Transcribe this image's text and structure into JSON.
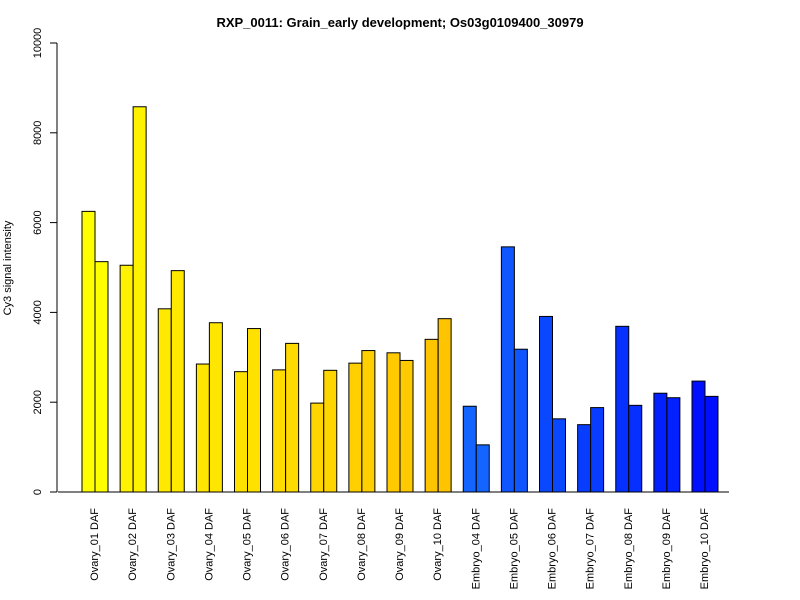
{
  "chart_data": {
    "type": "bar",
    "title": "RXP_0011: Grain_early development; Os03g0109400_30979",
    "xlabel": "",
    "ylabel": "Cy3 signal intensity",
    "ylim": [
      0,
      10000
    ],
    "yticks": [
      "0",
      "2000",
      "4000",
      "6000",
      "8000",
      "10000"
    ],
    "grid": false,
    "legend": "none",
    "categories": [
      "Ovary_01 DAF",
      "Ovary_02 DAF",
      "Ovary_03 DAF",
      "Ovary_04 DAF",
      "Ovary_05 DAF",
      "Ovary_06 DAF",
      "Ovary_07 DAF",
      "Ovary_08 DAF",
      "Ovary_09 DAF",
      "Ovary_10 DAF",
      "Embryo_04 DAF",
      "Embryo_05 DAF",
      "Embryo_06 DAF",
      "Embryo_07 DAF",
      "Embryo_08 DAF",
      "Embryo_09 DAF",
      "Embryo_10 DAF"
    ],
    "colors": [
      "#ffff00",
      "#fff200",
      "#ffe900",
      "#ffe600",
      "#ffe100",
      "#ffdb00",
      "#ffd500",
      "#ffcf00",
      "#ffca00",
      "#ffc400",
      "#1464ff",
      "#0f56ff",
      "#0a48ff",
      "#083dff",
      "#0530ff",
      "#0320ff",
      "#0010ff"
    ],
    "series": [
      {
        "values": [
          6250,
          5050,
          4080,
          2850,
          2680,
          2720,
          1980,
          2870,
          3100,
          3400,
          1910,
          5460,
          3910,
          1500,
          3690,
          2200,
          2470
        ]
      },
      {
        "values": [
          5130,
          8580,
          4930,
          3770,
          3640,
          3310,
          2710,
          3150,
          2930,
          3860,
          1050,
          3180,
          1630,
          1880,
          1930,
          2100,
          2130
        ]
      }
    ]
  }
}
